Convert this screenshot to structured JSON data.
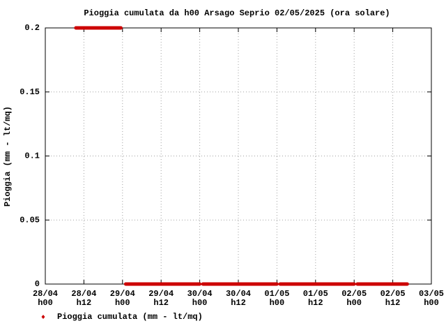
{
  "chart_data": {
    "type": "line",
    "title": "Pioggia cumulata da h00 Arsago Seprio 02/05/2025 (ora solare)",
    "y_label": "Pioggia (mm - lt/mq)",
    "x": [
      9.5,
      23.5,
      null,
      25,
      48,
      null,
      49,
      72,
      null,
      73,
      96,
      null,
      97,
      112.5
    ],
    "series": [
      {
        "name": "Pioggia cumulata (mm - lt/mq)",
        "color": "#cc0000",
        "values": [
          0.2,
          0.2,
          null,
          0,
          0,
          null,
          0,
          0,
          null,
          0,
          0,
          null,
          0,
          0
        ]
      }
    ],
    "xlim": [
      0,
      120
    ],
    "xticks": [
      {
        "value": 0,
        "label": "28/04\nh00"
      },
      {
        "value": 12,
        "label": "28/04\nh12"
      },
      {
        "value": 24,
        "label": "29/04\nh00"
      },
      {
        "value": 36,
        "label": "29/04\nh12"
      },
      {
        "value": 48,
        "label": "30/04\nh00"
      },
      {
        "value": 60,
        "label": "30/04\nh12"
      },
      {
        "value": 72,
        "label": "01/05\nh00"
      },
      {
        "value": 84,
        "label": "01/05\nh12"
      },
      {
        "value": 96,
        "label": "02/05\nh00"
      },
      {
        "value": 108,
        "label": "02/05\nh12"
      },
      {
        "value": 120,
        "label": "03/05\nh00"
      }
    ],
    "ylim": [
      0,
      0.2
    ],
    "yticks": [
      0,
      0.05,
      0.1,
      0.15,
      0.2
    ],
    "grid": true
  }
}
